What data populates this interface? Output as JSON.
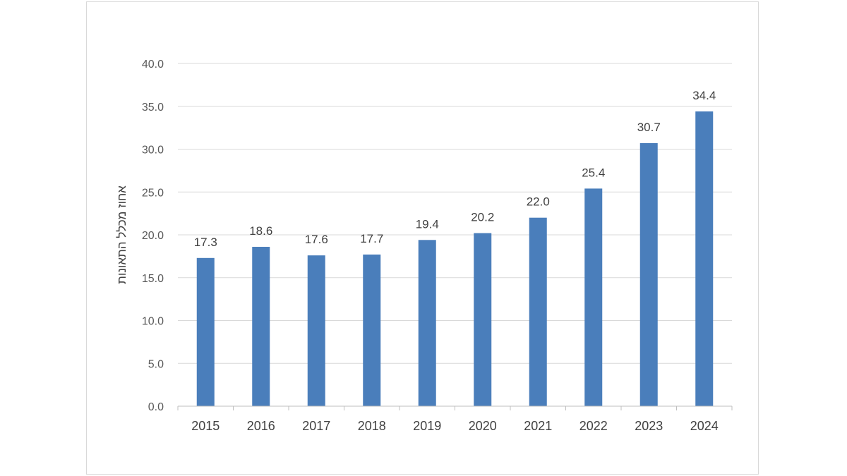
{
  "chart_data": {
    "type": "bar",
    "categories": [
      "2015",
      "2016",
      "2017",
      "2018",
      "2019",
      "2020",
      "2021",
      "2022",
      "2023",
      "2024"
    ],
    "values": [
      17.3,
      18.6,
      17.6,
      17.7,
      19.4,
      20.2,
      22.0,
      25.4,
      30.7,
      34.4
    ],
    "value_labels": [
      "17.3",
      "18.6",
      "17.6",
      "17.7",
      "19.4",
      "20.2",
      "22.0",
      "25.4",
      "30.7",
      "34.4"
    ],
    "yticks": [
      "0.0",
      "5.0",
      "10.0",
      "15.0",
      "20.0",
      "25.0",
      "30.0",
      "35.0",
      "40.0"
    ],
    "ylim": [
      0,
      40
    ],
    "ylabel": "אחוז מכלל התאונות",
    "xlabel": "",
    "title": "",
    "grid": true,
    "legend": "none",
    "colors": {
      "bar": "#4a7ebb"
    }
  }
}
